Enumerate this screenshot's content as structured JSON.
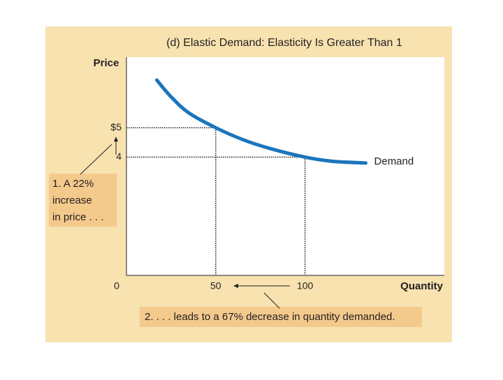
{
  "chart_data": {
    "type": "line",
    "title": "(d) Elastic Demand: Elasticity Is Greater Than 1",
    "y_label": "Price",
    "x_label": "Quantity",
    "x": [
      17,
      25,
      35,
      50,
      65,
      80,
      100,
      115,
      134
    ],
    "series": [
      {
        "name": "Demand",
        "color": "#1b75bb",
        "values": [
          6.62,
          6.05,
          5.5,
          5.0,
          4.6,
          4.3,
          4.0,
          3.86,
          3.8
        ]
      }
    ],
    "xlim": [
      0,
      178
    ],
    "ylim": [
      0,
      7.4
    ],
    "xticks": [
      0,
      50,
      100
    ],
    "yticks": [
      {
        "value": 5,
        "label": "$5"
      },
      4
    ],
    "annotations": [
      {
        "lines": [
          "1. A 22%",
          "increase",
          "in price . . ."
        ]
      },
      {
        "lines": [
          "2. . . . leads to a 67% decrease in quantity demanded."
        ]
      }
    ]
  }
}
